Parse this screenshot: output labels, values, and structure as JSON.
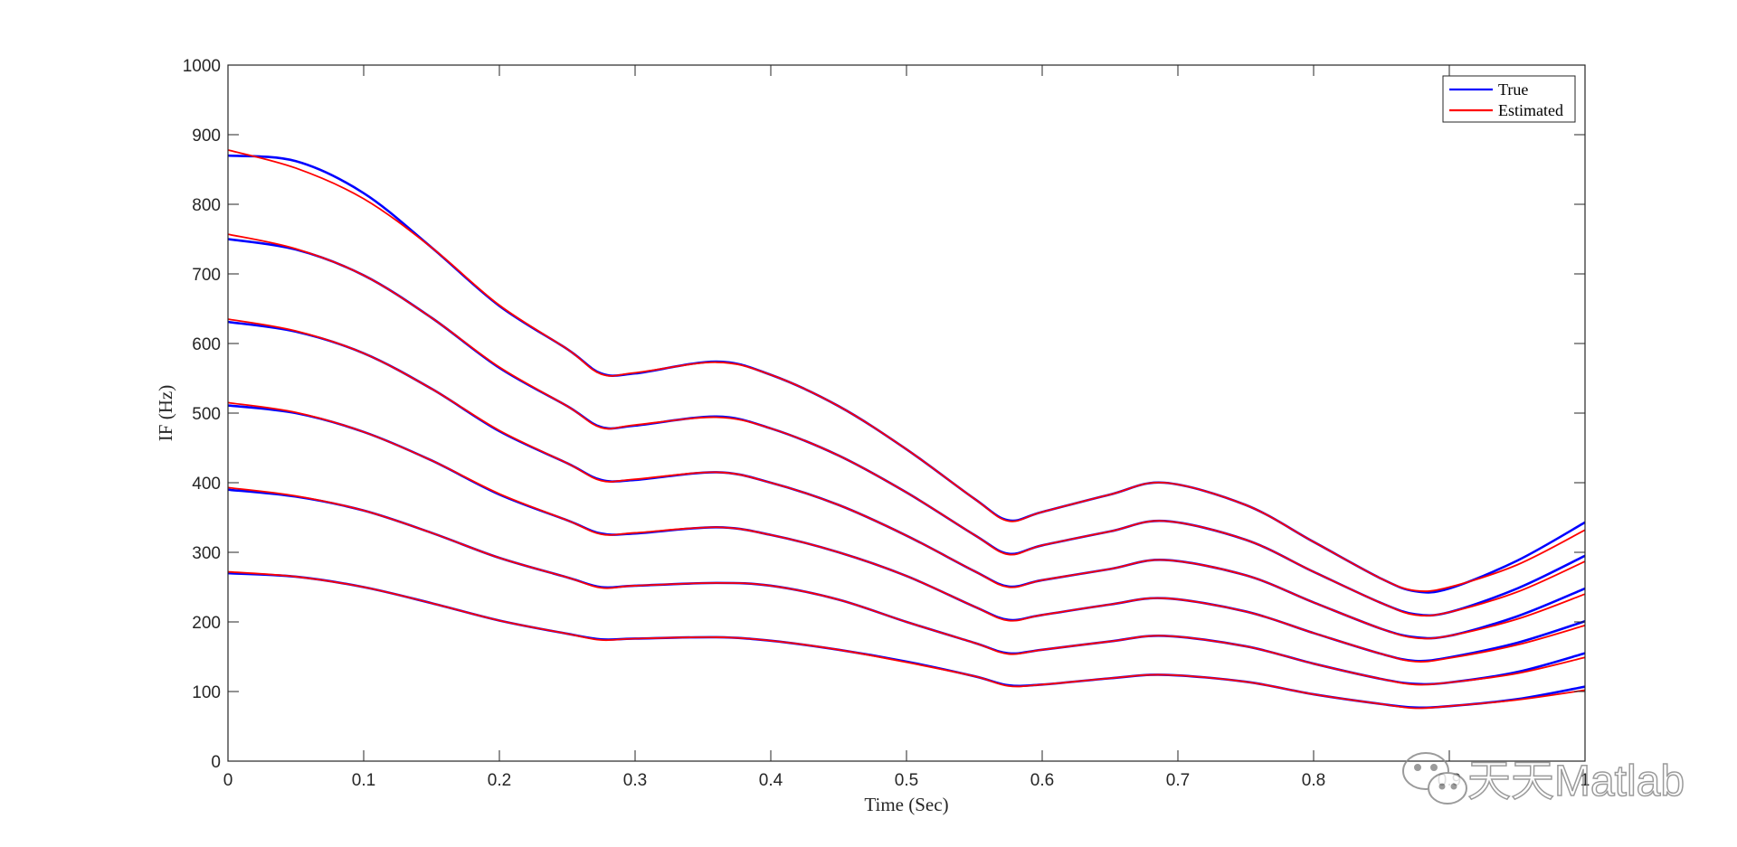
{
  "chart_data": {
    "type": "line",
    "title": "",
    "xlabel": "Time (Sec)",
    "ylabel": "IF (Hz)",
    "xlim": [
      0,
      1
    ],
    "ylim": [
      0,
      1000
    ],
    "x_ticks": [
      "0",
      "0.1",
      "0.2",
      "0.3",
      "0.4",
      "0.5",
      "0.6",
      "0.7",
      "0.8",
      "0.9",
      "1"
    ],
    "y_ticks": [
      "0",
      "100",
      "200",
      "300",
      "400",
      "500",
      "600",
      "700",
      "800",
      "900",
      "1000"
    ],
    "grid": false,
    "box": true,
    "legend": {
      "position": "top-right",
      "entries": [
        {
          "label": "True",
          "color": "#0000ff"
        },
        {
          "label": "Estimated",
          "color": "#ff0000"
        }
      ]
    },
    "x": [
      0,
      0.05,
      0.1,
      0.15,
      0.2,
      0.25,
      0.275,
      0.3,
      0.36,
      0.4,
      0.45,
      0.5,
      0.55,
      0.575,
      0.6,
      0.65,
      0.69,
      0.75,
      0.8,
      0.85,
      0.875,
      0.9,
      0.95,
      1.0
    ],
    "series": [
      {
        "name": "True",
        "component": 1,
        "color": "#0000ff",
        "values": [
          270,
          265,
          250,
          227,
          202,
          183,
          175,
          176,
          178,
          173,
          160,
          143,
          122,
          109,
          110,
          119,
          124,
          114,
          96,
          82,
          77,
          79,
          89,
          107
        ]
      },
      {
        "name": "True",
        "component": 2,
        "color": "#0000ff",
        "values": [
          390,
          380,
          360,
          328,
          292,
          264,
          250,
          252,
          256,
          252,
          232,
          200,
          170,
          155,
          160,
          172,
          180,
          165,
          140,
          118,
          111,
          113,
          128,
          155
        ]
      },
      {
        "name": "True",
        "component": 3,
        "color": "#0000ff",
        "values": [
          511,
          500,
          473,
          432,
          383,
          346,
          327,
          327,
          336,
          325,
          300,
          266,
          222,
          203,
          210,
          225,
          234,
          215,
          184,
          154,
          144,
          149,
          170,
          201
        ]
      },
      {
        "name": "True",
        "component": 4,
        "color": "#0000ff",
        "values": [
          631,
          617,
          586,
          535,
          474,
          428,
          404,
          404,
          415,
          400,
          368,
          324,
          273,
          251,
          260,
          276,
          289,
          267,
          228,
          190,
          178,
          180,
          208,
          248
        ]
      },
      {
        "name": "True",
        "component": 5,
        "color": "#0000ff",
        "values": [
          750,
          735,
          698,
          637,
          565,
          510,
          480,
          482,
          495,
          478,
          439,
          386,
          325,
          298,
          310,
          330,
          345,
          318,
          272,
          227,
          211,
          214,
          248,
          295
        ]
      },
      {
        "name": "True",
        "component": 6,
        "color": "#0000ff",
        "values": [
          870,
          862,
          816,
          738,
          654,
          592,
          557,
          557,
          574,
          555,
          510,
          448,
          377,
          346,
          358,
          383,
          400,
          368,
          315,
          262,
          244,
          248,
          288,
          343
        ]
      },
      {
        "name": "Estimated",
        "component": 1,
        "color": "#ff0000",
        "values": [
          272,
          265,
          250,
          227,
          202,
          183,
          174,
          176,
          178,
          173,
          160,
          142,
          122,
          108,
          110,
          119,
          124,
          114,
          96,
          82,
          76,
          79,
          88,
          102
        ]
      },
      {
        "name": "Estimated",
        "component": 2,
        "color": "#ff0000",
        "values": [
          393,
          381,
          360,
          328,
          292,
          264,
          249,
          252,
          256,
          252,
          232,
          200,
          170,
          154,
          160,
          172,
          180,
          165,
          140,
          118,
          110,
          113,
          126,
          149
        ]
      },
      {
        "name": "Estimated",
        "component": 3,
        "color": "#ff0000",
        "values": [
          515,
          501,
          473,
          432,
          384,
          346,
          326,
          328,
          336,
          325,
          300,
          266,
          222,
          202,
          210,
          225,
          234,
          215,
          184,
          154,
          143,
          148,
          167,
          195
        ]
      },
      {
        "name": "Estimated",
        "component": 4,
        "color": "#ff0000",
        "values": [
          635,
          618,
          586,
          535,
          475,
          428,
          403,
          405,
          415,
          400,
          368,
          324,
          273,
          250,
          260,
          276,
          289,
          267,
          228,
          190,
          177,
          180,
          204,
          240
        ]
      },
      {
        "name": "Estimated",
        "component": 5,
        "color": "#ff0000",
        "values": [
          757,
          736,
          698,
          637,
          566,
          510,
          479,
          483,
          494,
          478,
          439,
          386,
          325,
          297,
          310,
          330,
          345,
          318,
          272,
          227,
          210,
          214,
          243,
          287
        ]
      },
      {
        "name": "Estimated",
        "component": 6,
        "color": "#ff0000",
        "values": [
          878,
          852,
          808,
          738,
          655,
          592,
          556,
          558,
          573,
          555,
          510,
          448,
          377,
          345,
          358,
          383,
          400,
          368,
          315,
          262,
          245,
          250,
          282,
          332
        ]
      }
    ]
  },
  "watermark": {
    "text": "天天Matlab",
    "icon": "wechat-icon"
  }
}
